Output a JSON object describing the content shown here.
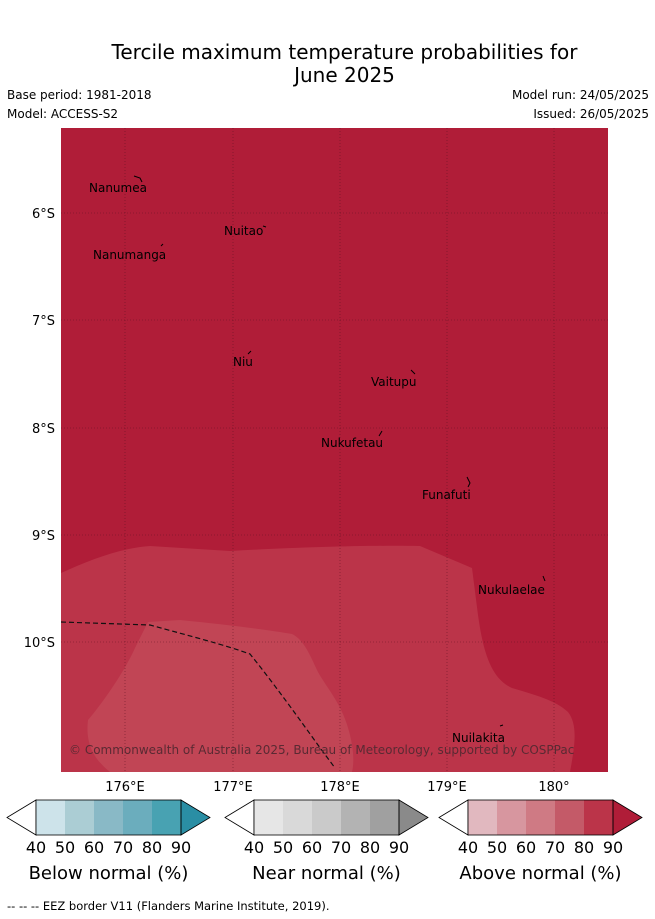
{
  "title_line1": "Tercile maximum temperature probabilities for",
  "title_line2": "June 2025",
  "base_period": "Base period: 1981-2018",
  "model": "Model: ACCESS-S2",
  "model_run": "Model run: 24/05/2025",
  "issued": "Issued: 26/05/2025",
  "lat_labels": [
    "6°S",
    "7°S",
    "8°S",
    "9°S",
    "10°S"
  ],
  "lon_labels": [
    "176°E",
    "177°E",
    "178°E",
    "179°E",
    "180°"
  ],
  "places": [
    "Nanumea",
    "Nuitao",
    "Nanumanga",
    "Niu",
    "Vaitupu",
    "Nukufetau",
    "Funafuti",
    "Nukulaelae",
    "Nuilakita"
  ],
  "copyright": "© Commonwealth of Australia 2025, Bureau of Meteorology, supported by COSPPac",
  "colorbars": [
    {
      "label": "Below normal (%)",
      "ticks": [
        "40",
        "50",
        "60",
        "70",
        "80",
        "90"
      ],
      "colors": [
        "#ffffff",
        "#cde3ea",
        "#abcdd4",
        "#89b9c6",
        "#6badbd",
        "#48a2b2",
        "#2a8ea4"
      ]
    },
    {
      "label": "Near normal (%)",
      "ticks": [
        "40",
        "50",
        "60",
        "70",
        "80",
        "90"
      ],
      "colors": [
        "#ffffff",
        "#e6e6e6",
        "#d9d9d9",
        "#cacaca",
        "#b3b3b3",
        "#a0a0a0",
        "#8a8a8a"
      ]
    },
    {
      "label": "Above normal (%)",
      "ticks": [
        "40",
        "50",
        "60",
        "70",
        "80",
        "90"
      ],
      "colors": [
        "#ffffff",
        "#e1b8bf",
        "#d7969f",
        "#cf7a84",
        "#c45a68",
        "#bb3449",
        "#b01d38"
      ]
    }
  ],
  "fill_colors": {
    "above_90": "#b01d38",
    "above_80": "#bb3449",
    "above_70": "#c14555"
  },
  "footer": "--  --  -- EEZ border V11 (Flanders Marine Institute, 2019)."
}
